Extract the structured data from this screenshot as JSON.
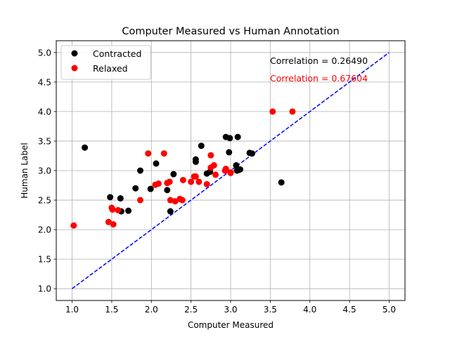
{
  "chart_data": {
    "type": "scatter",
    "title": "Computer Measured vs Human Annotation",
    "xlabel": "Computer Measured",
    "ylabel": "Human Label",
    "xlim": [
      0.8,
      5.2
    ],
    "ylim": [
      0.8,
      5.2
    ],
    "xticks": [
      "1.0",
      "1.5",
      "2.0",
      "2.5",
      "3.0",
      "3.5",
      "4.0",
      "4.5",
      "5.0"
    ],
    "yticks": [
      "1.0",
      "1.5",
      "2.0",
      "2.5",
      "3.0",
      "3.5",
      "4.0",
      "4.5",
      "5.0"
    ],
    "grid": true,
    "legend_position": "top-left",
    "reference_line": {
      "x": [
        1.0,
        5.0
      ],
      "y": [
        1.0,
        5.0
      ],
      "style": "dashed",
      "color": "#0000ff"
    },
    "annotations": [
      {
        "text": "Correlation = 0.26490",
        "color": "#000000"
      },
      {
        "text": "Correlation = 0.67604",
        "color": "#ff0000"
      }
    ],
    "series": [
      {
        "name": "Contracted",
        "color": "#000000",
        "points": [
          [
            1.16,
            3.39
          ],
          [
            1.48,
            2.55
          ],
          [
            1.61,
            2.53
          ],
          [
            1.62,
            2.31
          ],
          [
            1.71,
            2.32
          ],
          [
            1.8,
            2.7
          ],
          [
            1.86,
            3.0
          ],
          [
            1.99,
            2.69
          ],
          [
            2.06,
            3.12
          ],
          [
            2.2,
            2.67
          ],
          [
            2.24,
            2.31
          ],
          [
            2.28,
            2.94
          ],
          [
            2.56,
            3.15
          ],
          [
            2.56,
            3.19
          ],
          [
            2.63,
            3.42
          ],
          [
            2.7,
            2.95
          ],
          [
            2.74,
            2.98
          ],
          [
            2.94,
            3.57
          ],
          [
            2.98,
            3.31
          ],
          [
            2.99,
            3.55
          ],
          [
            3.07,
            3.09
          ],
          [
            3.08,
            3.0
          ],
          [
            3.09,
            3.57
          ],
          [
            3.1,
            3.01
          ],
          [
            3.12,
            3.02
          ],
          [
            3.24,
            3.3
          ],
          [
            3.27,
            3.29
          ],
          [
            3.64,
            2.8
          ]
        ]
      },
      {
        "name": "Relaxed",
        "color": "#ff0000",
        "points": [
          [
            1.02,
            2.07
          ],
          [
            1.46,
            2.13
          ],
          [
            1.5,
            2.37
          ],
          [
            1.51,
            2.34
          ],
          [
            1.52,
            2.09
          ],
          [
            1.58,
            2.33
          ],
          [
            1.86,
            2.5
          ],
          [
            1.96,
            3.29
          ],
          [
            2.05,
            2.76
          ],
          [
            2.09,
            2.78
          ],
          [
            2.16,
            3.29
          ],
          [
            2.2,
            2.79
          ],
          [
            2.23,
            2.81
          ],
          [
            2.24,
            2.5
          ],
          [
            2.3,
            2.48
          ],
          [
            2.36,
            2.52
          ],
          [
            2.39,
            2.5
          ],
          [
            2.4,
            2.84
          ],
          [
            2.5,
            2.81
          ],
          [
            2.54,
            2.9
          ],
          [
            2.56,
            2.9
          ],
          [
            2.6,
            2.81
          ],
          [
            2.7,
            2.77
          ],
          [
            2.75,
            3.26
          ],
          [
            2.75,
            3.05
          ],
          [
            2.79,
            3.09
          ],
          [
            2.81,
            2.93
          ],
          [
            2.93,
            3.0
          ],
          [
            2.94,
            3.03
          ],
          [
            3.0,
            2.97
          ],
          [
            3.0,
            2.96
          ],
          [
            3.53,
            4.0
          ],
          [
            3.78,
            4.0
          ]
        ]
      }
    ]
  }
}
